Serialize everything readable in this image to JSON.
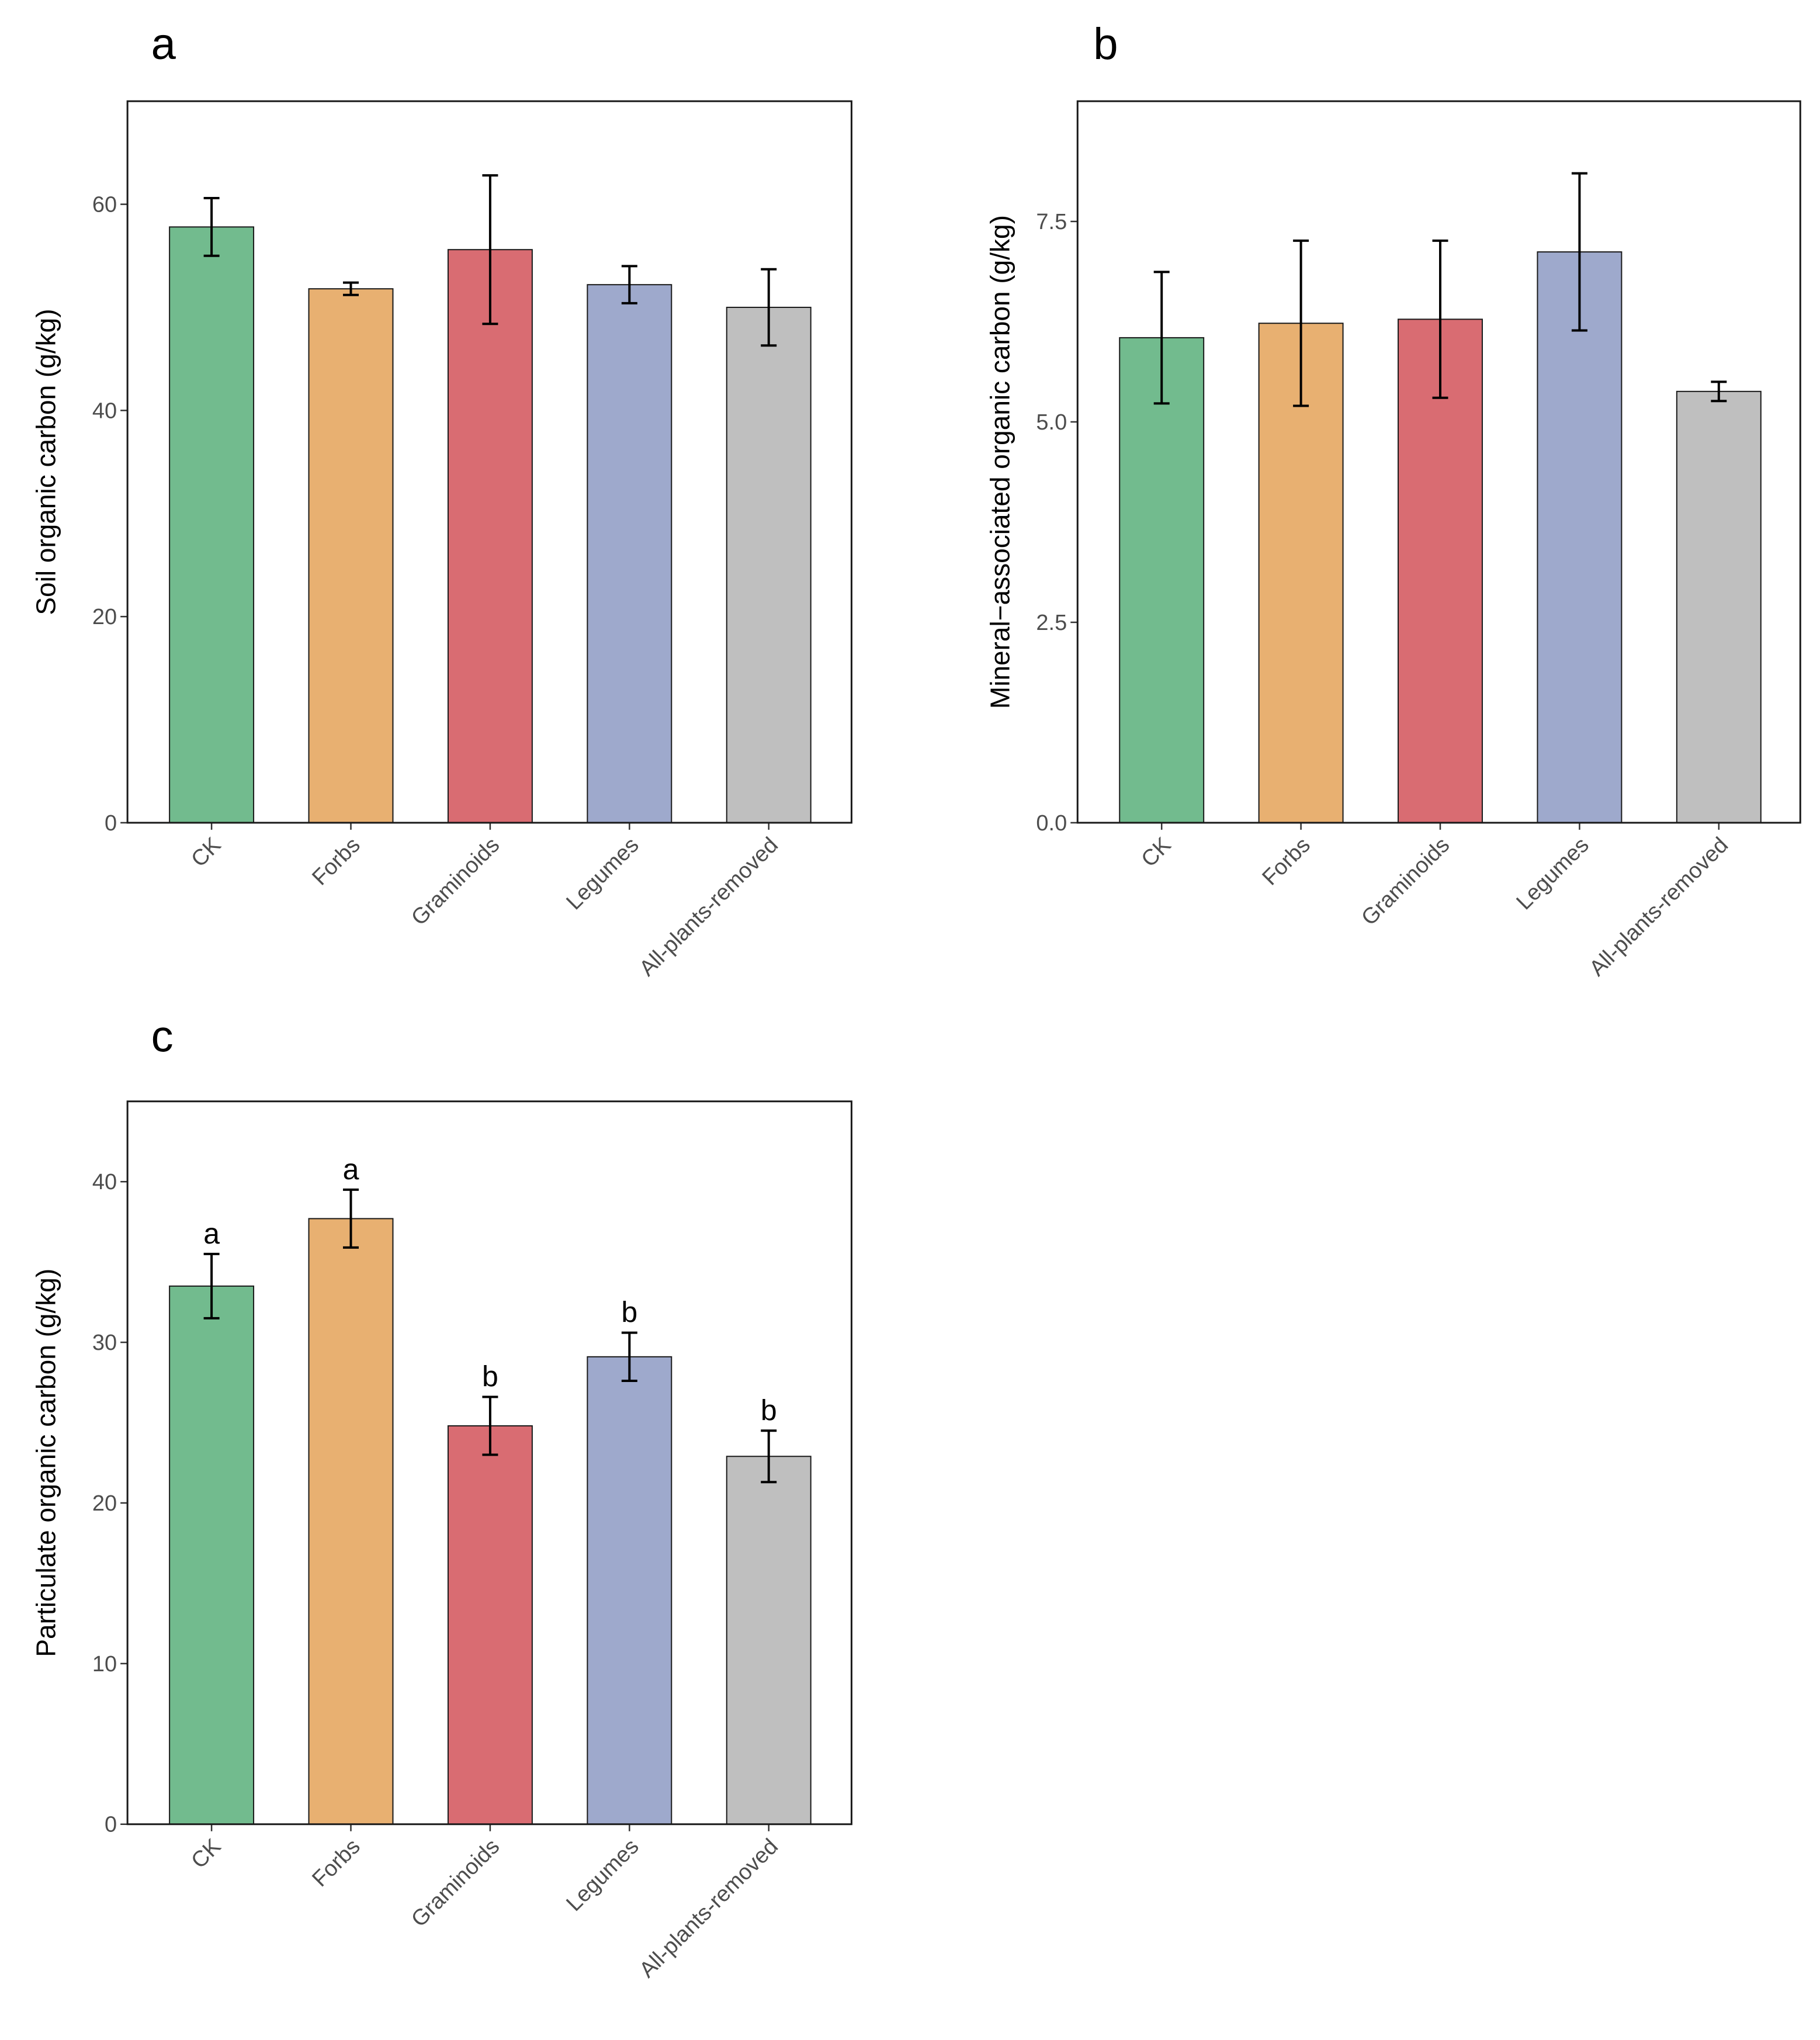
{
  "colors": {
    "CK": "#72bb8e",
    "Forbs": "#e8b071",
    "Graminoids": "#d96c72",
    "Legumes": "#9ea9cc",
    "All-plants-removed": "#bfbfbf"
  },
  "chart_data": [
    {
      "type": "bar",
      "panel": "a",
      "categories": [
        "CK",
        "Forbs",
        "Graminoids",
        "Legumes",
        "All-plants-removed"
      ],
      "values": [
        57.8,
        51.8,
        55.6,
        52.2,
        50.0
      ],
      "error": [
        2.8,
        0.6,
        7.2,
        1.8,
        3.7
      ],
      "sig_labels": [],
      "ylabel": "Soil organic carbon  (g/kg)",
      "ylim": [
        0,
        70
      ],
      "yticks": [
        0,
        20,
        40,
        60
      ],
      "ytick_labels": [
        "0",
        "20",
        "40",
        "60"
      ]
    },
    {
      "type": "bar",
      "panel": "b",
      "categories": [
        "CK",
        "Forbs",
        "Graminoids",
        "Legumes",
        "All-plants-removed"
      ],
      "values": [
        6.05,
        6.23,
        6.28,
        7.12,
        5.38
      ],
      "error": [
        0.82,
        1.03,
        0.98,
        0.98,
        0.12
      ],
      "sig_labels": [],
      "ylabel": "Mineral−associated organic carbon (g/kg)",
      "ylim": [
        0,
        9
      ],
      "yticks": [
        0,
        2.5,
        5,
        7.5
      ],
      "ytick_labels": [
        "0.0",
        "2.5",
        "5.0",
        "7.5"
      ]
    },
    {
      "type": "bar",
      "panel": "c",
      "categories": [
        "CK",
        "Forbs",
        "Graminoids",
        "Legumes",
        "All-plants-removed"
      ],
      "values": [
        33.5,
        37.7,
        24.8,
        29.1,
        22.9
      ],
      "error": [
        2.0,
        1.8,
        1.8,
        1.5,
        1.6
      ],
      "sig_labels": [
        "a",
        "a",
        "b",
        "b",
        "b"
      ],
      "ylabel": "Particulate organic carbon (g/kg)",
      "ylim": [
        0,
        45
      ],
      "yticks": [
        0,
        10,
        20,
        30,
        40
      ],
      "ytick_labels": [
        "0",
        "10",
        "20",
        "30",
        "40"
      ]
    }
  ]
}
